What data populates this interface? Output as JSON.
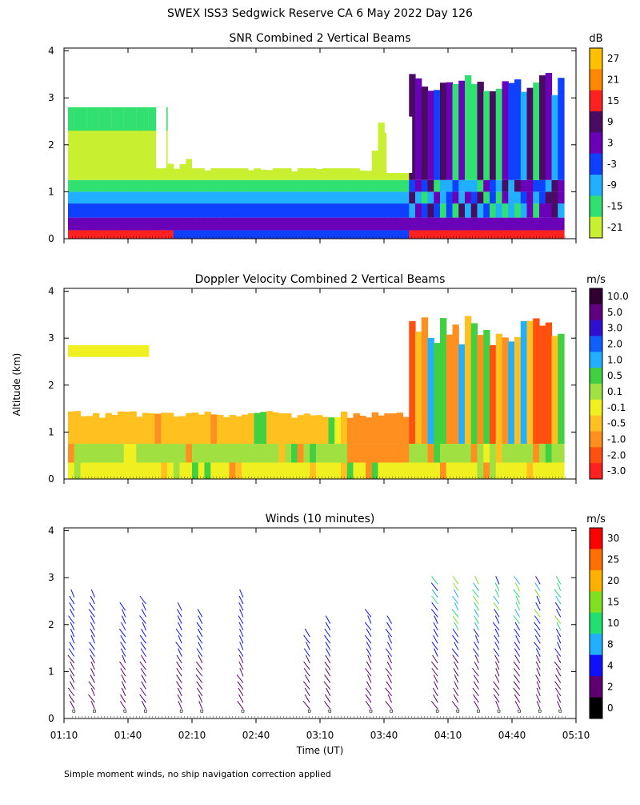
{
  "title": "SWEX ISS3 Sedgwick Reserve CA   6 May 2022 Day 126",
  "ylabel": "Altitude (km)",
  "xlabel": "Time (UT)",
  "footnote": "Simple moment winds, no ship navigation correction applied",
  "x_ticks": [
    "01:10",
    "01:40",
    "02:10",
    "02:40",
    "03:10",
    "03:40",
    "04:10",
    "04:40",
    "05:10"
  ],
  "chart_data": [
    {
      "type": "heatmap",
      "title": "SNR Combined 2 Vertical Beams",
      "xlim": [
        "01:10",
        "05:10"
      ],
      "ylim": [
        0,
        4
      ],
      "y_ticks": [
        "0",
        "1",
        "2",
        "3",
        "4"
      ],
      "colorbar": {
        "unit": "dB",
        "labels": [
          "27",
          "21",
          "15",
          "9",
          "3",
          "-3",
          "-9",
          "-15",
          "-21"
        ],
        "colors": [
          "#ffc000",
          "#ff8800",
          "#ff2020",
          "#4a0c63",
          "#6a00b8",
          "#1040ff",
          "#20b0ff",
          "#30e070",
          "#c8f030"
        ]
      }
    },
    {
      "type": "heatmap",
      "title": "Doppler Velocity Combined 2 Vertical Beams",
      "xlim": [
        "01:10",
        "05:10"
      ],
      "ylim": [
        0,
        4
      ],
      "y_ticks": [
        "0",
        "1",
        "2",
        "3",
        "4"
      ],
      "colorbar": {
        "unit": "m/s",
        "labels": [
          "10.0",
          "5.0",
          "3.0",
          "2.0",
          "1.0",
          "0.5",
          "0.1",
          "-0.1",
          "-0.5",
          "-1.0",
          "-2.0",
          "-3.0"
        ],
        "colors": [
          "#300030",
          "#600080",
          "#3010d0",
          "#1060ff",
          "#20b0ff",
          "#40d040",
          "#a0e040",
          "#f0f020",
          "#ffc020",
          "#ff9020",
          "#ff5010",
          "#ff2020"
        ]
      }
    },
    {
      "type": "scatter",
      "title": "Winds (10 minutes)",
      "xlim": [
        "01:10",
        "05:10"
      ],
      "ylim": [
        0,
        4
      ],
      "y_ticks": [
        "0",
        "1",
        "2",
        "3",
        "4"
      ],
      "colorbar": {
        "unit": "m/s",
        "labels": [
          "30",
          "25",
          "20",
          "15",
          "10",
          "8",
          "4",
          "2",
          "0"
        ],
        "colors": [
          "#ff0000",
          "#ff7000",
          "#ffb000",
          "#80e020",
          "#20e070",
          "#20b0ff",
          "#1010ff",
          "#600070",
          "#000000"
        ]
      }
    }
  ]
}
